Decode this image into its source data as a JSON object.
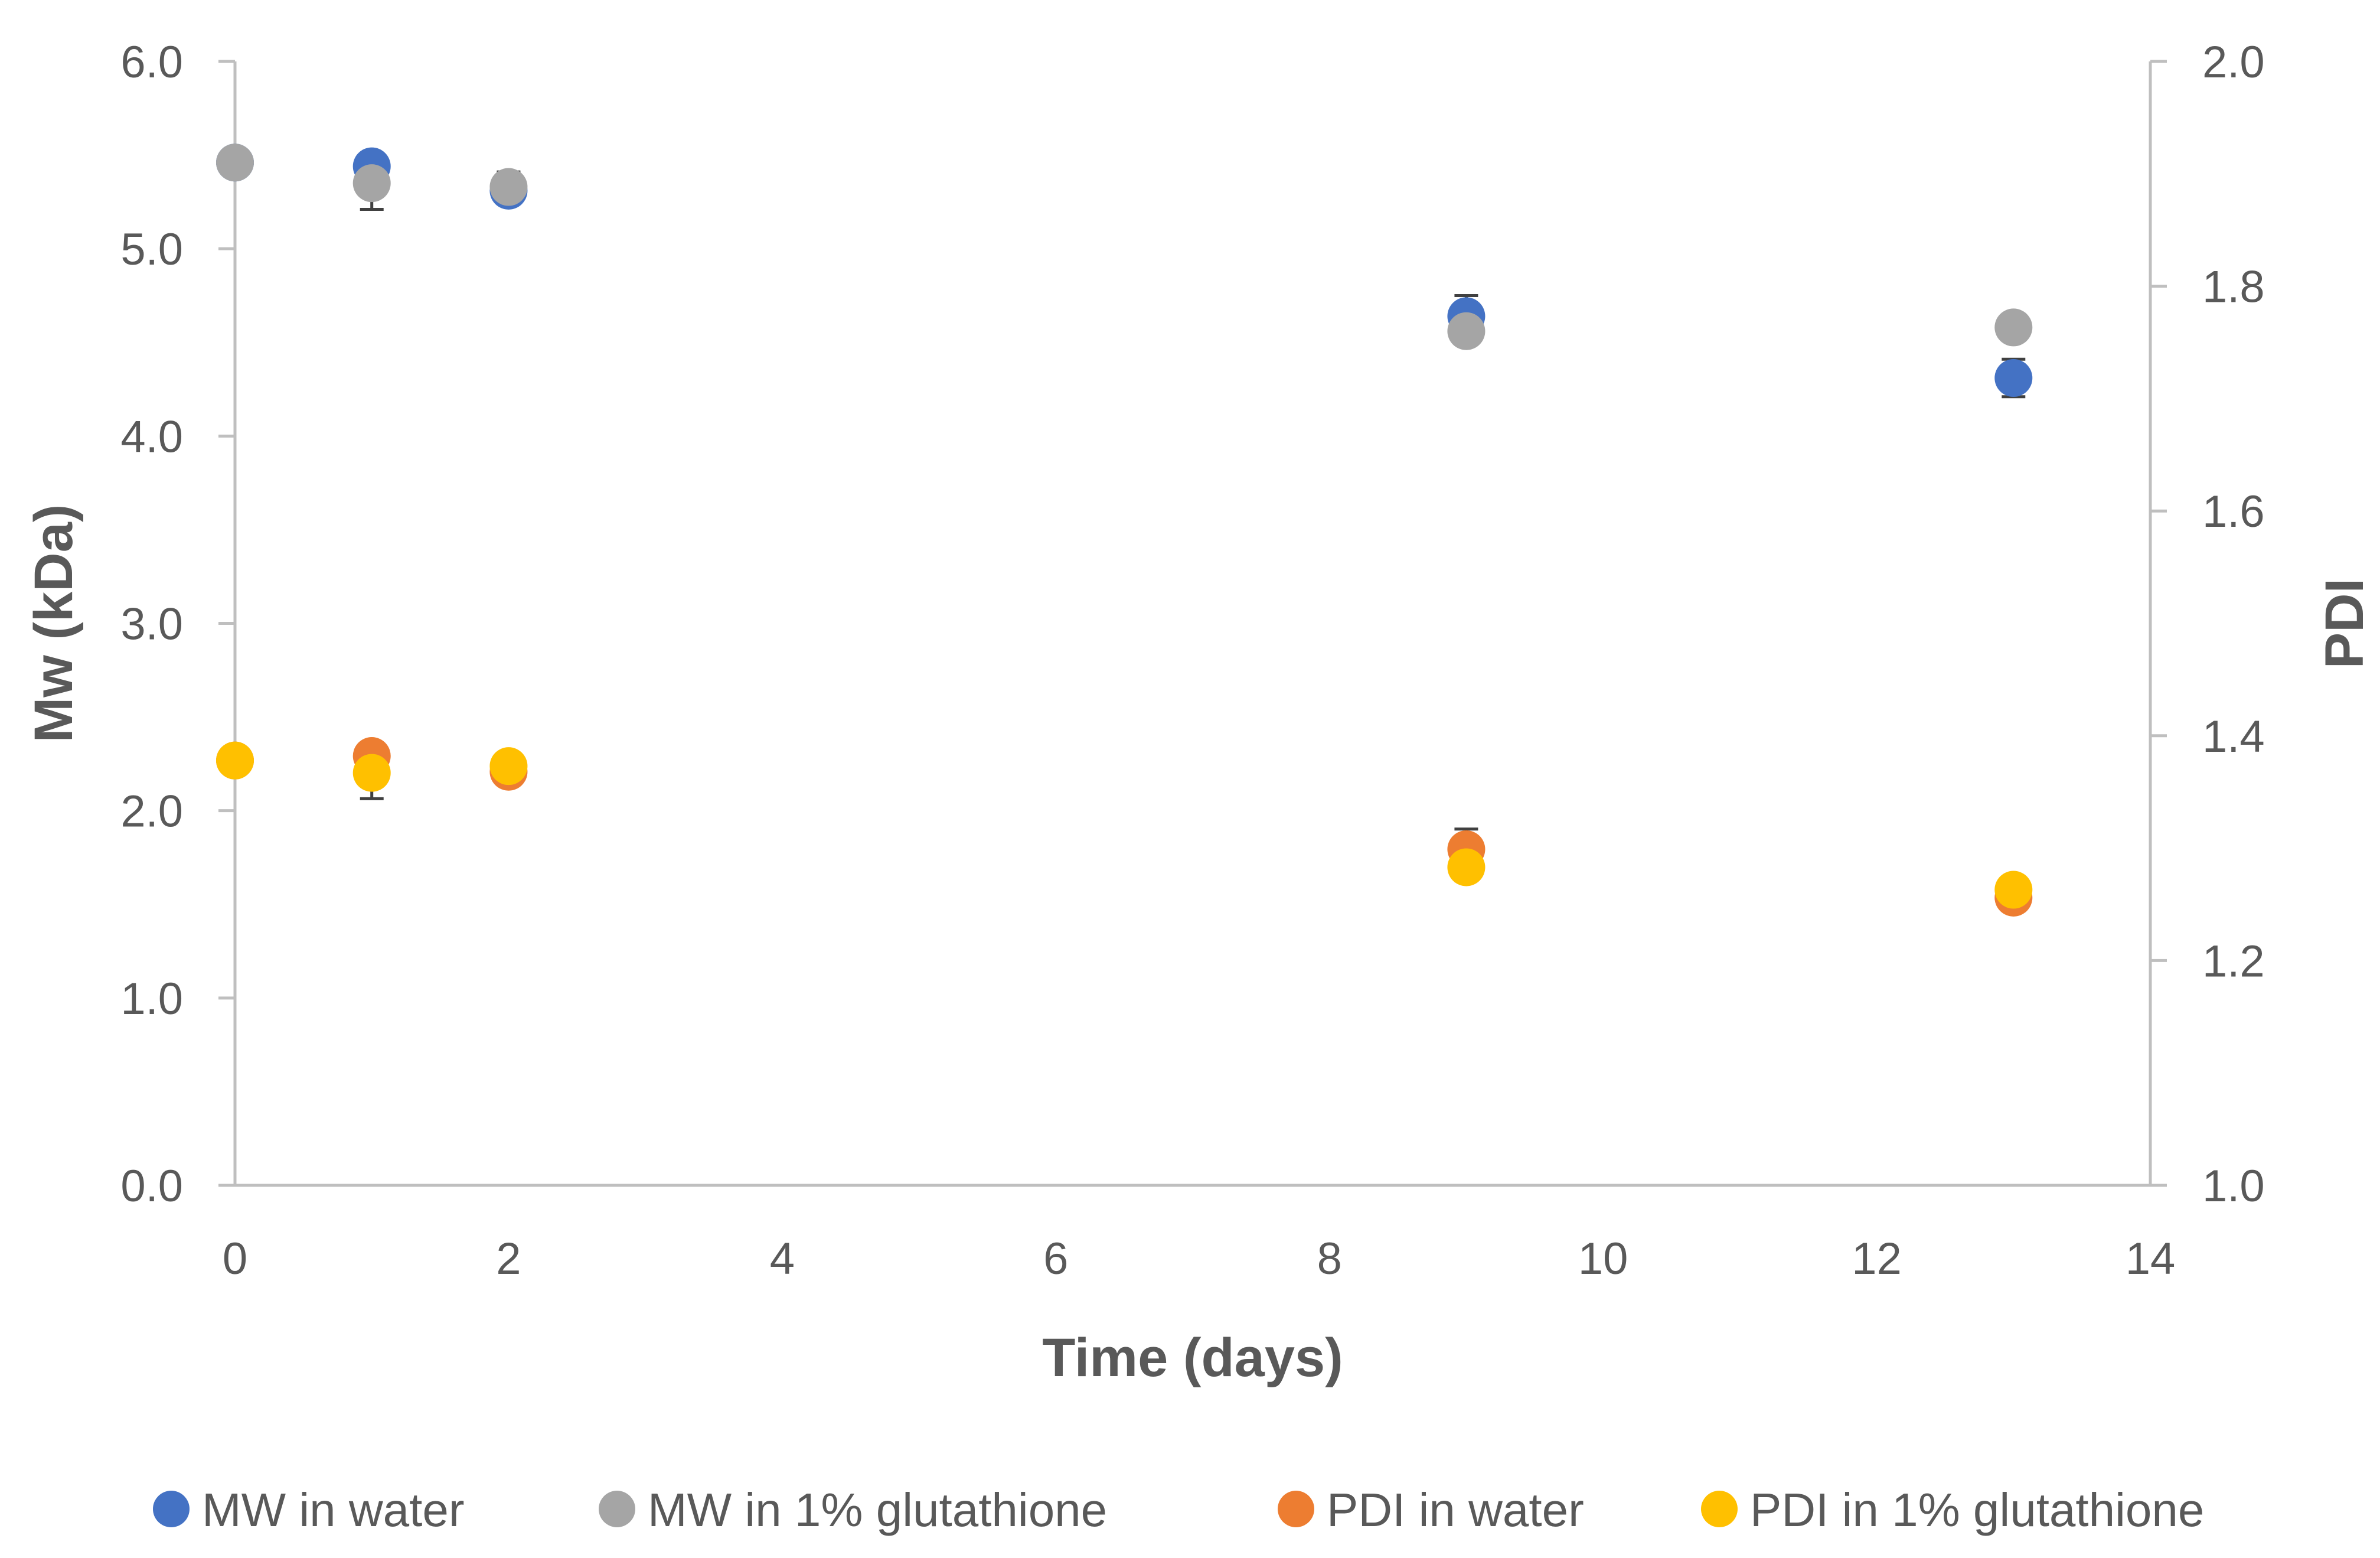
{
  "chart_data": {
    "type": "scatter",
    "title": "",
    "xlabel": "Time (days)",
    "ylabel": "Mw (kDa)",
    "y2label": "PDI",
    "xlim": [
      0,
      14
    ],
    "ylim": [
      0,
      6
    ],
    "y2lim": [
      1,
      2
    ],
    "xticks": [
      0,
      2,
      4,
      6,
      8,
      10,
      12,
      14
    ],
    "xtick_labels": [
      "0",
      "2",
      "4",
      "6",
      "8",
      "10",
      "12",
      "14"
    ],
    "yticks": [
      0,
      1,
      2,
      3,
      4,
      5,
      6
    ],
    "ytick_labels": [
      "0.0",
      "1.0",
      "2.0",
      "3.0",
      "4.0",
      "5.0",
      "6.0"
    ],
    "y2ticks": [
      1.0,
      1.2,
      1.4,
      1.6,
      1.8,
      2.0
    ],
    "y2tick_labels": [
      "1.0",
      "1.2",
      "1.4",
      "1.6",
      "1.8",
      "2.0"
    ],
    "grid": false,
    "legend_position": "bottom",
    "series": [
      {
        "name": "MW in water",
        "axis": "left",
        "color": "#4472C4",
        "x": [
          0,
          1,
          2,
          9,
          13
        ],
        "y": [
          5.46,
          5.44,
          5.31,
          4.64,
          4.31
        ],
        "err": [
          0,
          0.05,
          0.03,
          0.11,
          0.1
        ]
      },
      {
        "name": "MW in 1% glutathione",
        "axis": "left",
        "color": "#A5A5A5",
        "x": [
          0,
          1,
          2,
          9,
          13
        ],
        "y": [
          5.46,
          5.35,
          5.33,
          4.56,
          4.58
        ],
        "err": [
          0,
          0.14,
          0.08,
          0.07,
          0.03
        ]
      },
      {
        "name": "PDI in water",
        "axis": "right",
        "color": "#ED7D31",
        "x": [
          0,
          1,
          2,
          9,
          13
        ],
        "y": [
          1.378,
          1.382,
          1.368,
          1.299,
          1.256
        ],
        "err": [
          0,
          0.01,
          0.006,
          0.018,
          0.01
        ]
      },
      {
        "name": "PDI in 1% glutathione",
        "axis": "right",
        "color": "#FFC000",
        "x": [
          0,
          1,
          2,
          9,
          13
        ],
        "y": [
          1.378,
          1.367,
          1.373,
          1.283,
          1.263
        ],
        "err": [
          0,
          0.023,
          0.01,
          0.012,
          0.006
        ]
      }
    ]
  }
}
